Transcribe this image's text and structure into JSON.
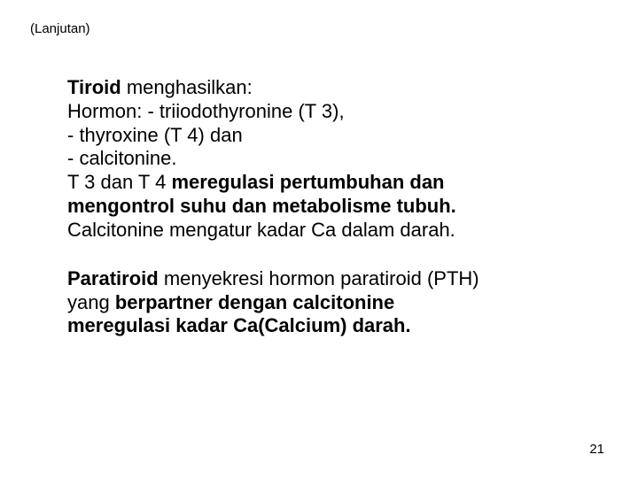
{
  "header": "(Lanjutan)",
  "line1_bold": "Tiroid",
  "line1_rest": " menghasilkan:",
  "line2": "Hormon:  - triiodothyronine (T 3),",
  "line3": "- thyroxine (T 4) dan",
  "line4": "- calcitonine.",
  "line5a": "T 3 dan T 4 ",
  "line5b": "meregulasi pertumbuhan dan",
  "line6": "mengontrol suhu dan metabolisme tubuh.",
  "line7": "Calcitonine mengatur kadar Ca dalam darah.",
  "line8a": "Paratiroid",
  "line8b": " menyekresi hormon paratiroid (PTH)",
  "line9": "yang ",
  "line9b": "berpartner dengan calcitonine",
  "line10": "meregulasi kadar Ca(Calcium) darah.",
  "page": "21"
}
